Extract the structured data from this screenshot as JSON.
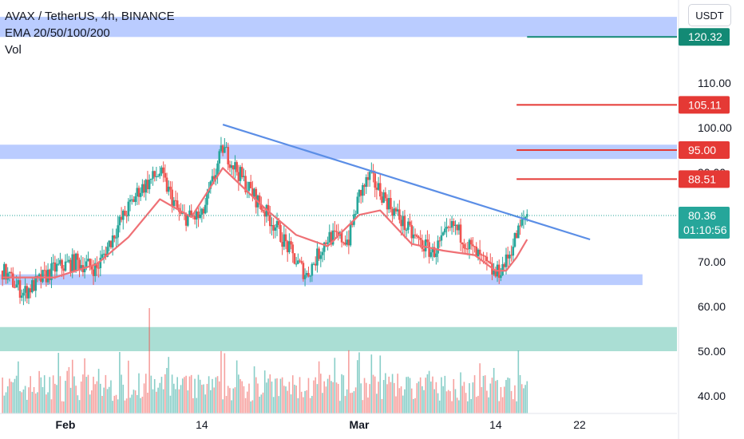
{
  "header": {
    "symbol_line": "AVAX / TetherUS, 4h, BINANCE",
    "ema_line": "EMA 20/50/100/200",
    "vol_line": "Vol"
  },
  "currency_button": "USDT",
  "colors": {
    "up": "#26a69a",
    "down": "#ef5350",
    "zone_blue": "#b3c6ff",
    "zone_teal": "#a5dcd2",
    "trendline": "#5b8ee6",
    "ema": "#ef7075",
    "red_level": "#e53935",
    "green_level": "#138a75",
    "price_label": "#26a69a"
  },
  "chart_data": {
    "type": "candlestick",
    "price_scale": {
      "labels": [
        "110.00",
        "100.00",
        "90.00",
        "80.00",
        "70.00",
        "60.00",
        "50.00",
        "40.00"
      ],
      "values": [
        110,
        100,
        90,
        80,
        70,
        60,
        50,
        40
      ],
      "ylim": [
        37,
        129
      ]
    },
    "time_scale": {
      "labels": [
        "Feb",
        "14",
        "Mar",
        "14",
        "22"
      ],
      "dates": [
        "2022-02-01",
        "2022-02-14",
        "2022-03-01",
        "2022-03-14",
        "2022-03-22"
      ],
      "xlim": [
        "2022-01-26",
        "2022-03-31"
      ]
    },
    "last_price": {
      "value": "80.36",
      "countdown": "01:10:56"
    },
    "levels": [
      {
        "value": "120.32",
        "kind": "green",
        "from": "2022-03-17"
      },
      {
        "value": "105.11",
        "kind": "red",
        "from": "2022-03-16"
      },
      {
        "value": "95.00",
        "kind": "red",
        "from": "2022-03-16"
      },
      {
        "value": "88.51",
        "kind": "red",
        "from": "2022-03-16"
      }
    ],
    "zones": [
      {
        "kind": "blue",
        "from_price": 120.3,
        "to_price": 124.8
      },
      {
        "kind": "blue",
        "from_price": 93.0,
        "to_price": 96.2
      },
      {
        "kind": "blue",
        "from_price": 64.8,
        "to_price": 67.2,
        "to_date": "2022-03-28"
      },
      {
        "kind": "teal",
        "from_price": 50.0,
        "to_price": 55.4
      }
    ],
    "trendline": {
      "from": [
        "2022-02-16",
        100.7
      ],
      "to": [
        "2022-03-23",
        75.0
      ]
    },
    "ema_path": [
      [
        "2022-01-26",
        66.5
      ],
      [
        "2022-01-31",
        66.5
      ],
      [
        "2022-02-04",
        69.5
      ],
      [
        "2022-02-07",
        75.5
      ],
      [
        "2022-02-10",
        84.0
      ],
      [
        "2022-02-13",
        80.0
      ],
      [
        "2022-02-16",
        91.0
      ],
      [
        "2022-02-20",
        82.0
      ],
      [
        "2022-02-23",
        76.0
      ],
      [
        "2022-02-26",
        73.5
      ],
      [
        "2022-03-01",
        80.5
      ],
      [
        "2022-03-03",
        81.5
      ],
      [
        "2022-03-06",
        74.0
      ],
      [
        "2022-03-09",
        72.5
      ],
      [
        "2022-03-12",
        71.5
      ],
      [
        "2022-03-14",
        68.0
      ],
      [
        "2022-03-15",
        68.0
      ],
      [
        "2022-03-16",
        71.0
      ],
      [
        "2022-03-17",
        75.0
      ]
    ],
    "price_path": [
      [
        "2022-01-26",
        68.0
      ],
      [
        "2022-01-28",
        63.0
      ],
      [
        "2022-01-31",
        68.5
      ],
      [
        "2022-02-02",
        70.0
      ],
      [
        "2022-02-04",
        68.5
      ],
      [
        "2022-02-06",
        78.0
      ],
      [
        "2022-02-08",
        86.0
      ],
      [
        "2022-02-10",
        90.0
      ],
      [
        "2022-02-12",
        80.0
      ],
      [
        "2022-02-14",
        80.0
      ],
      [
        "2022-02-16",
        95.5
      ],
      [
        "2022-02-18",
        88.0
      ],
      [
        "2022-02-21",
        78.0
      ],
      [
        "2022-02-23",
        70.0
      ],
      [
        "2022-02-24",
        67.0
      ],
      [
        "2022-02-26",
        75.5
      ],
      [
        "2022-02-28",
        75.0
      ],
      [
        "2022-03-01",
        85.0
      ],
      [
        "2022-03-02",
        89.0
      ],
      [
        "2022-03-04",
        82.5
      ],
      [
        "2022-03-06",
        76.0
      ],
      [
        "2022-03-08",
        72.0
      ],
      [
        "2022-03-10",
        78.0
      ],
      [
        "2022-03-12",
        72.0
      ],
      [
        "2022-03-14",
        67.0
      ],
      [
        "2022-03-15",
        70.0
      ],
      [
        "2022-03-16",
        76.0
      ],
      [
        "2022-03-17",
        81.0
      ]
    ],
    "volume": {
      "max_date": "2022-02-09",
      "max_height_fraction": 1.0
    }
  }
}
